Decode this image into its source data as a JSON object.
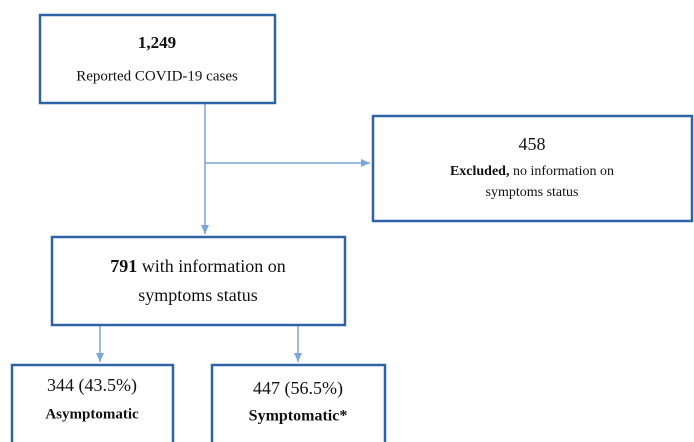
{
  "nodes": [
    {
      "count": "1,249",
      "label": "Reported COVID-19 cases"
    },
    {
      "count": "458",
      "bold": "Excluded,",
      "line1": " no information on",
      "line2": "symptoms status"
    },
    {
      "count": "791",
      "line1": " with information on",
      "line2": "symptoms status"
    },
    {
      "count": "344 (43.5%)",
      "label": "Asymptomatic"
    },
    {
      "count": "447 (56.5%)",
      "label": "Symptomatic*"
    }
  ]
}
